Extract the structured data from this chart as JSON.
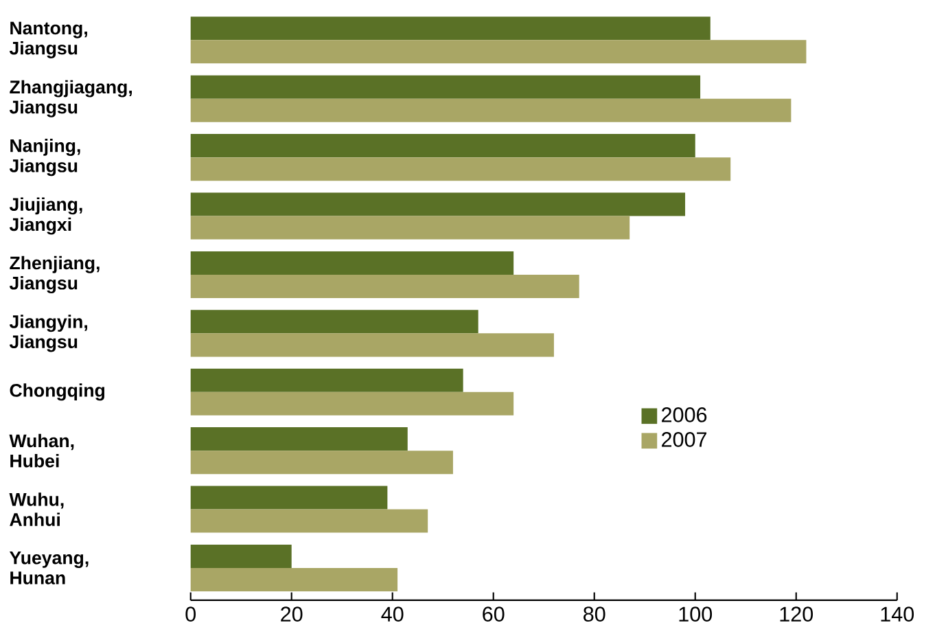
{
  "chart_data": {
    "type": "bar",
    "orientation": "horizontal",
    "categories": [
      "Nantong, Jiangsu",
      "Zhangjiagang, Jiangsu",
      "Nanjing, Jiangsu",
      "Jiujiang, Jiangxi",
      "Zhenjiang, Jiangsu",
      "Jiangyin, Jiangsu",
      "Chongqing",
      "Wuhan, Hubei",
      "Wuhu, Anhui",
      "Yueyang, Hunan"
    ],
    "series": [
      {
        "name": "2006",
        "color": "#5a7126",
        "values": [
          103,
          101,
          100,
          98,
          64,
          57,
          54,
          43,
          39,
          20
        ]
      },
      {
        "name": "2007",
        "color": "#a9a665",
        "values": [
          122,
          119,
          107,
          87,
          77,
          72,
          64,
          52,
          47,
          41
        ]
      }
    ],
    "xlim": [
      0,
      140
    ],
    "xticks": [
      0,
      20,
      40,
      60,
      80,
      100,
      120,
      140
    ],
    "grid": false,
    "legend": "right"
  }
}
